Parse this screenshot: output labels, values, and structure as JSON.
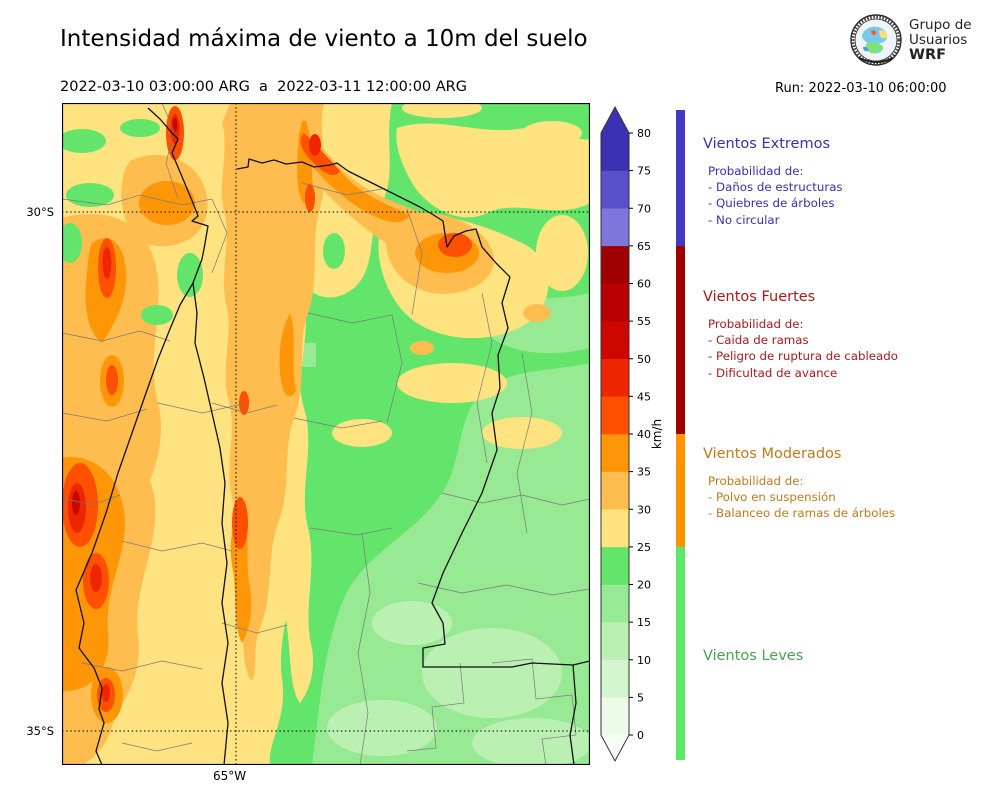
{
  "header": {
    "title": "Intensidad máxima de viento a 10m del suelo",
    "period": "2022-03-10 03:00:00 ARG  a  2022-03-11 12:00:00 ARG",
    "run_label": "Run: 2022-03-10 06:00:00",
    "logo": {
      "line1": "Grupo de",
      "line2": "Usuarios",
      "line3": "WRF",
      "icon": "globe-emblem-icon"
    }
  },
  "map": {
    "lat_labels": [
      "30°S",
      "35°S"
    ],
    "lon_labels": [
      "65°W"
    ]
  },
  "colorbar": {
    "unit": "km/h",
    "levels": [
      0,
      5,
      10,
      15,
      20,
      25,
      30,
      35,
      40,
      45,
      50,
      55,
      60,
      65,
      70,
      75,
      80
    ],
    "colors": [
      "#ebfbe7",
      "#d4f6cf",
      "#bbf0b3",
      "#97e994",
      "#63e46a",
      "#ffe381",
      "#ffbd4f",
      "#ff9608",
      "#ff5000",
      "#ee2600",
      "#cd0600",
      "#b80000",
      "#9e0000",
      "#7e76da",
      "#5951c9",
      "#3c30b5"
    ],
    "over_color": "#3c30b5",
    "under_color": "#f6fdf4"
  },
  "legend": {
    "sections": [
      {
        "title": "Vientos Extremos",
        "color": "#3a2eb4",
        "bar_color": "#4338c2",
        "intro": "Probabilidad de:",
        "items": [
          "- Daños de estructuras",
          "- Quiebres de árboles",
          "- No circular"
        ]
      },
      {
        "title": "Vientos Fuertes",
        "color": "#a81a1a",
        "bar_color": "#9e0000",
        "intro": "Probabilidad de:",
        "items": [
          "- Caida de ramas",
          "- Peligro de ruptura de cableado",
          "- Dificultad de avance"
        ]
      },
      {
        "title": "Vientos Moderados",
        "color": "#bf7a1a",
        "bar_color": "#ff9300",
        "intro": "Probabilidad de:",
        "items": [
          "- Polvo en suspensión",
          "- Balanceo de ramas de árboles"
        ]
      },
      {
        "title": "Vientos Leves",
        "color": "#4da04d",
        "bar_color": "#5ee868",
        "intro": "",
        "items": []
      }
    ]
  }
}
